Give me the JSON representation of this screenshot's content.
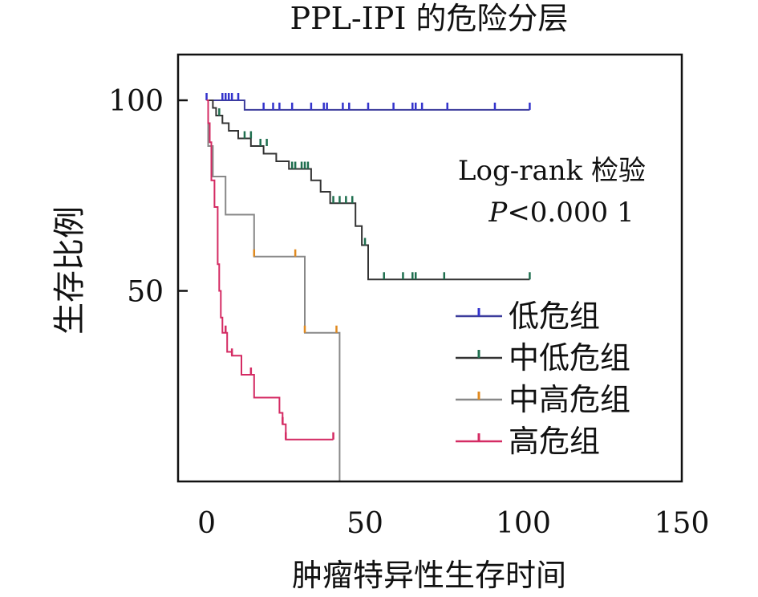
{
  "chart_data": {
    "type": "line",
    "subtype": "kaplan-meier",
    "title": "PPL-IPI 的危险分层",
    "xlabel": "肿瘤特异性生存时间",
    "ylabel": "生存比例",
    "xlim": [
      -9,
      150
    ],
    "ylim": [
      0,
      112
    ],
    "xticks": [
      0,
      50,
      100,
      150
    ],
    "yticks": [
      50,
      100
    ],
    "grid": false,
    "annotation": {
      "line1": "Log-rank 检验",
      "p_symbol": "P",
      "p_rest": "<0.000 1"
    },
    "legend": {
      "placement": "bottom-right",
      "entries": [
        "低危组",
        "中低危组",
        "中高危组",
        "高危组"
      ]
    },
    "series": [
      {
        "name": "低危组",
        "color": "#3c3c9c",
        "tick_color": "#3333cc",
        "steps": [
          [
            0,
            100
          ],
          [
            12,
            100
          ],
          [
            12,
            97.5
          ],
          [
            102,
            97.5
          ]
        ],
        "censored": [
          [
            0,
            100
          ],
          [
            5,
            100
          ],
          [
            6,
            100
          ],
          [
            7,
            100
          ],
          [
            8,
            100
          ],
          [
            10,
            100
          ],
          [
            18,
            97.5
          ],
          [
            21,
            97.5
          ],
          [
            23,
            97.5
          ],
          [
            27,
            97.5
          ],
          [
            33,
            97.5
          ],
          [
            37,
            97.5
          ],
          [
            38,
            97.5
          ],
          [
            43,
            97.5
          ],
          [
            45,
            97.5
          ],
          [
            51,
            97.5
          ],
          [
            59,
            97.5
          ],
          [
            65,
            97.5
          ],
          [
            66,
            97.5
          ],
          [
            68,
            97.5
          ],
          [
            76,
            97.5
          ],
          [
            91,
            97.5
          ],
          [
            102,
            97.5
          ]
        ]
      },
      {
        "name": "中低危组",
        "color": "#333333",
        "tick_color": "#1f6f4f",
        "steps": [
          [
            0,
            100
          ],
          [
            2,
            100
          ],
          [
            2,
            98
          ],
          [
            3,
            98
          ],
          [
            3,
            96
          ],
          [
            5,
            96
          ],
          [
            5,
            94
          ],
          [
            7,
            94
          ],
          [
            7,
            92
          ],
          [
            10,
            92
          ],
          [
            10,
            90
          ],
          [
            14,
            90
          ],
          [
            14,
            88
          ],
          [
            18,
            88
          ],
          [
            18,
            86
          ],
          [
            22,
            86
          ],
          [
            22,
            84
          ],
          [
            26,
            84
          ],
          [
            26,
            82
          ],
          [
            33,
            82
          ],
          [
            33,
            79
          ],
          [
            36,
            79
          ],
          [
            36,
            76
          ],
          [
            39,
            76
          ],
          [
            39,
            73
          ],
          [
            47,
            73
          ],
          [
            47,
            67
          ],
          [
            49,
            67
          ],
          [
            49,
            62
          ],
          [
            51,
            62
          ],
          [
            51,
            53
          ],
          [
            102,
            53
          ]
        ],
        "censored": [
          [
            4,
            96
          ],
          [
            12,
            90
          ],
          [
            14,
            90
          ],
          [
            17,
            88
          ],
          [
            19,
            88
          ],
          [
            27,
            82
          ],
          [
            28,
            82
          ],
          [
            30,
            82
          ],
          [
            31,
            82
          ],
          [
            32,
            82
          ],
          [
            40,
            73
          ],
          [
            42,
            73
          ],
          [
            44,
            73
          ],
          [
            46,
            73
          ],
          [
            50,
            62
          ],
          [
            56,
            53
          ],
          [
            62,
            53
          ],
          [
            65,
            53
          ],
          [
            66,
            53
          ],
          [
            75,
            53
          ],
          [
            102,
            53
          ]
        ]
      },
      {
        "name": "中高危组",
        "color": "#888888",
        "tick_color": "#e08a20",
        "steps": [
          [
            0,
            100
          ],
          [
            0.5,
            100
          ],
          [
            0.5,
            88
          ],
          [
            2,
            88
          ],
          [
            2,
            80
          ],
          [
            6,
            80
          ],
          [
            6,
            70
          ],
          [
            15,
            70
          ],
          [
            15,
            59
          ],
          [
            31,
            59
          ],
          [
            31,
            39
          ],
          [
            42,
            39
          ],
          [
            42,
            0
          ]
        ],
        "censored": [
          [
            15,
            59
          ],
          [
            28,
            59
          ],
          [
            31,
            39
          ],
          [
            41,
            39
          ]
        ]
      },
      {
        "name": "高危组",
        "color": "#d42b63",
        "tick_color": "#d42b63",
        "steps": [
          [
            0,
            100
          ],
          [
            0.5,
            100
          ],
          [
            0.5,
            94
          ],
          [
            1,
            94
          ],
          [
            1,
            89
          ],
          [
            1.5,
            89
          ],
          [
            1.5,
            79
          ],
          [
            2.5,
            79
          ],
          [
            2.5,
            72
          ],
          [
            3.5,
            72
          ],
          [
            3.5,
            57
          ],
          [
            4,
            57
          ],
          [
            4,
            50
          ],
          [
            4.5,
            50
          ],
          [
            4.5,
            43
          ],
          [
            5,
            43
          ],
          [
            5,
            39
          ],
          [
            6.5,
            39
          ],
          [
            6.5,
            34
          ],
          [
            8,
            34
          ],
          [
            8,
            33
          ],
          [
            11,
            33
          ],
          [
            11,
            28
          ],
          [
            15,
            28
          ],
          [
            15,
            22
          ],
          [
            23,
            22
          ],
          [
            23,
            18
          ],
          [
            24,
            18
          ],
          [
            24,
            15
          ],
          [
            25,
            15
          ],
          [
            25,
            11
          ],
          [
            40,
            11
          ]
        ],
        "censored": [
          [
            6,
            39
          ],
          [
            8,
            33
          ],
          [
            14,
            28
          ],
          [
            24,
            15
          ],
          [
            25,
            11
          ],
          [
            40,
            11
          ]
        ]
      }
    ]
  }
}
